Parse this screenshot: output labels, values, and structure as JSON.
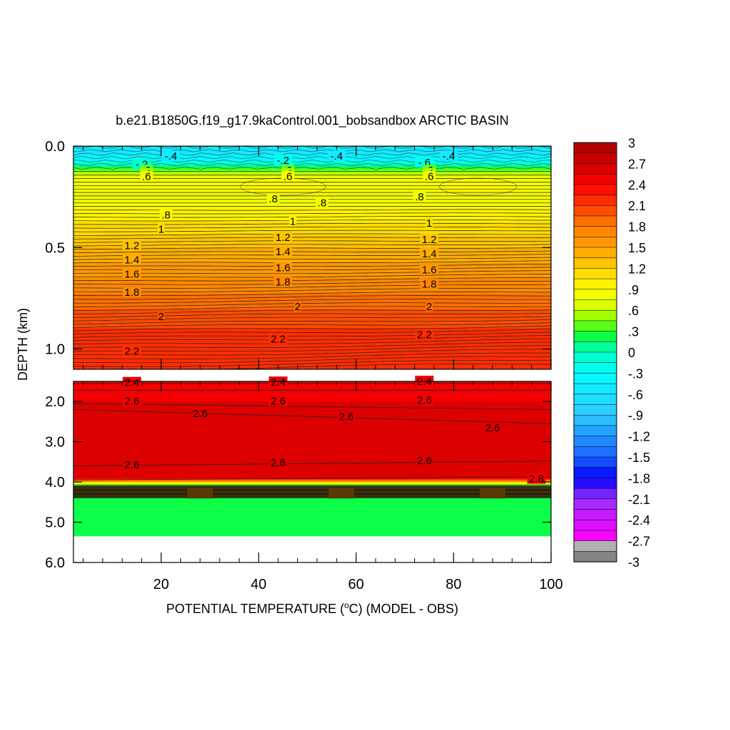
{
  "chart_data": {
    "type": "heatmap",
    "title": "b.e21.B1850G.f19_g17.9kaControl.001_bobsandbox ARCTIC BASIN",
    "xlabel": "POTENTIAL TEMPERATURE (",
    "xlabel_unit_sup": "o",
    "xlabel_suffix": "C) (MODEL - OBS)",
    "ylabel": "DEPTH (km)",
    "xlim": [
      2,
      100
    ],
    "x_ticks": [
      "20",
      "40",
      "60",
      "80",
      "100"
    ],
    "x_tick_values": [
      20,
      40,
      60,
      80,
      100
    ],
    "upper_panel": {
      "ylim": [
        0.0,
        1.1
      ],
      "y_ticks": [
        "0.0",
        "0.5",
        "1.0"
      ],
      "y_tick_values": [
        0.0,
        0.5,
        1.0
      ]
    },
    "lower_panel": {
      "ylim": [
        1.5,
        6.0
      ],
      "y_ticks": [
        "2.0",
        "3.0",
        "4.0",
        "5.0",
        "6.0"
      ],
      "y_tick_values": [
        2.0,
        3.0,
        4.0,
        5.0,
        6.0
      ],
      "profile_depths_km": [
        1.5,
        2.0,
        2.5,
        3.0,
        3.5,
        3.9,
        4.1,
        4.2,
        4.3,
        4.4,
        5.35
      ],
      "profile_values": [
        2.45,
        2.55,
        2.6,
        2.6,
        2.65,
        2.7,
        0.0,
        -1.5,
        0.5,
        0.2,
        0.2
      ],
      "missing_below_km": 5.35
    },
    "colorbar": {
      "min": -3,
      "max": 3,
      "step": 0.15,
      "labels": [
        "3",
        "2.7",
        "2.4",
        "2.1",
        "1.8",
        "1.5",
        "1.2",
        ".9",
        ".6",
        ".3",
        "0",
        "-.3",
        "-.6",
        "-.9",
        "-1.2",
        "-1.5",
        "-1.8",
        "-2.1",
        "-2.4",
        "-2.7",
        "-3"
      ],
      "label_values": [
        3,
        2.7,
        2.4,
        2.1,
        1.8,
        1.5,
        1.2,
        0.9,
        0.6,
        0.3,
        0,
        -0.3,
        -0.6,
        -0.9,
        -1.2,
        -1.5,
        -1.8,
        -2.1,
        -2.4,
        -2.7,
        -3
      ]
    },
    "profile_depths_km": [
      0.0,
      0.03,
      0.06,
      0.08,
      0.1,
      0.12,
      0.15,
      0.2,
      0.3,
      0.4,
      0.5,
      0.6,
      0.7,
      0.8,
      0.9,
      1.0,
      1.1
    ],
    "profile_values": [
      -0.5,
      -0.6,
      -0.4,
      -0.2,
      0.1,
      0.4,
      0.75,
      0.85,
      0.9,
      1.1,
      1.35,
      1.55,
      1.75,
      1.95,
      2.1,
      2.2,
      2.25
    ],
    "contour_labels": [
      {
        "text": "-.2",
        "x": 16,
        "depth": 0.09
      },
      {
        "text": "-.4",
        "x": 22,
        "depth": 0.05
      },
      {
        "text": "-.2",
        "x": 45,
        "depth": 0.07
      },
      {
        "text": "-.4",
        "x": 56,
        "depth": 0.05
      },
      {
        "text": "-.6",
        "x": 74,
        "depth": 0.08
      },
      {
        "text": "-.4",
        "x": 79,
        "depth": 0.05
      },
      {
        "text": ".2",
        "x": 17,
        "depth": 0.12
      },
      {
        "text": ".4",
        "x": 17,
        "depth": 0.135
      },
      {
        "text": ".6",
        "x": 17,
        "depth": 0.15
      },
      {
        "text": ".2",
        "x": 46,
        "depth": 0.12
      },
      {
        "text": ".4",
        "x": 46,
        "depth": 0.135
      },
      {
        "text": ".6",
        "x": 46,
        "depth": 0.15
      },
      {
        "text": ".2",
        "x": 75,
        "depth": 0.12
      },
      {
        "text": ".4",
        "x": 75,
        "depth": 0.135
      },
      {
        "text": ".6",
        "x": 75,
        "depth": 0.15
      },
      {
        "text": ".8",
        "x": 43,
        "depth": 0.26
      },
      {
        "text": ".8",
        "x": 53,
        "depth": 0.28
      },
      {
        "text": ".8",
        "x": 73,
        "depth": 0.25
      },
      {
        "text": ".8",
        "x": 21,
        "depth": 0.34
      },
      {
        "text": "1",
        "x": 47,
        "depth": 0.37
      },
      {
        "text": "1",
        "x": 75,
        "depth": 0.38
      },
      {
        "text": "1",
        "x": 20,
        "depth": 0.41
      },
      {
        "text": "1.2",
        "x": 45,
        "depth": 0.45
      },
      {
        "text": "1.2",
        "x": 75,
        "depth": 0.46
      },
      {
        "text": "1.2",
        "x": 14,
        "depth": 0.49
      },
      {
        "text": "1.4",
        "x": 45,
        "depth": 0.52
      },
      {
        "text": "1.4",
        "x": 75,
        "depth": 0.53
      },
      {
        "text": "1.4",
        "x": 14,
        "depth": 0.56
      },
      {
        "text": "1.6",
        "x": 45,
        "depth": 0.6
      },
      {
        "text": "1.6",
        "x": 75,
        "depth": 0.61
      },
      {
        "text": "1.6",
        "x": 14,
        "depth": 0.63
      },
      {
        "text": "1.8",
        "x": 45,
        "depth": 0.67
      },
      {
        "text": "1.8",
        "x": 75,
        "depth": 0.68
      },
      {
        "text": "1.8",
        "x": 14,
        "depth": 0.72
      },
      {
        "text": "2",
        "x": 48,
        "depth": 0.79
      },
      {
        "text": "2",
        "x": 75,
        "depth": 0.79
      },
      {
        "text": "2",
        "x": 20,
        "depth": 0.84
      },
      {
        "text": "2.2",
        "x": 44,
        "depth": 0.95
      },
      {
        "text": "2.2",
        "x": 74,
        "depth": 0.93
      },
      {
        "text": "2.2",
        "x": 14,
        "depth": 1.01
      },
      {
        "text": "2.4",
        "x": 14,
        "depth": 1.53
      },
      {
        "text": "2.4",
        "x": 44,
        "depth": 1.52
      },
      {
        "text": "2.4",
        "x": 74,
        "depth": 1.5
      },
      {
        "text": "2.6",
        "x": 14,
        "depth": 1.99
      },
      {
        "text": "2.6",
        "x": 44,
        "depth": 1.99
      },
      {
        "text": "2.6",
        "x": 74,
        "depth": 1.97
      },
      {
        "text": "2.6",
        "x": 28,
        "depth": 2.3
      },
      {
        "text": "2.6",
        "x": 58,
        "depth": 2.38
      },
      {
        "text": "2.6",
        "x": 88,
        "depth": 2.65
      },
      {
        "text": "2.6",
        "x": 14,
        "depth": 3.57
      },
      {
        "text": "2.6",
        "x": 44,
        "depth": 3.52
      },
      {
        "text": "2.6",
        "x": 74,
        "depth": 3.47
      },
      {
        "text": "2.8",
        "x": 97,
        "depth": 3.92
      }
    ]
  }
}
